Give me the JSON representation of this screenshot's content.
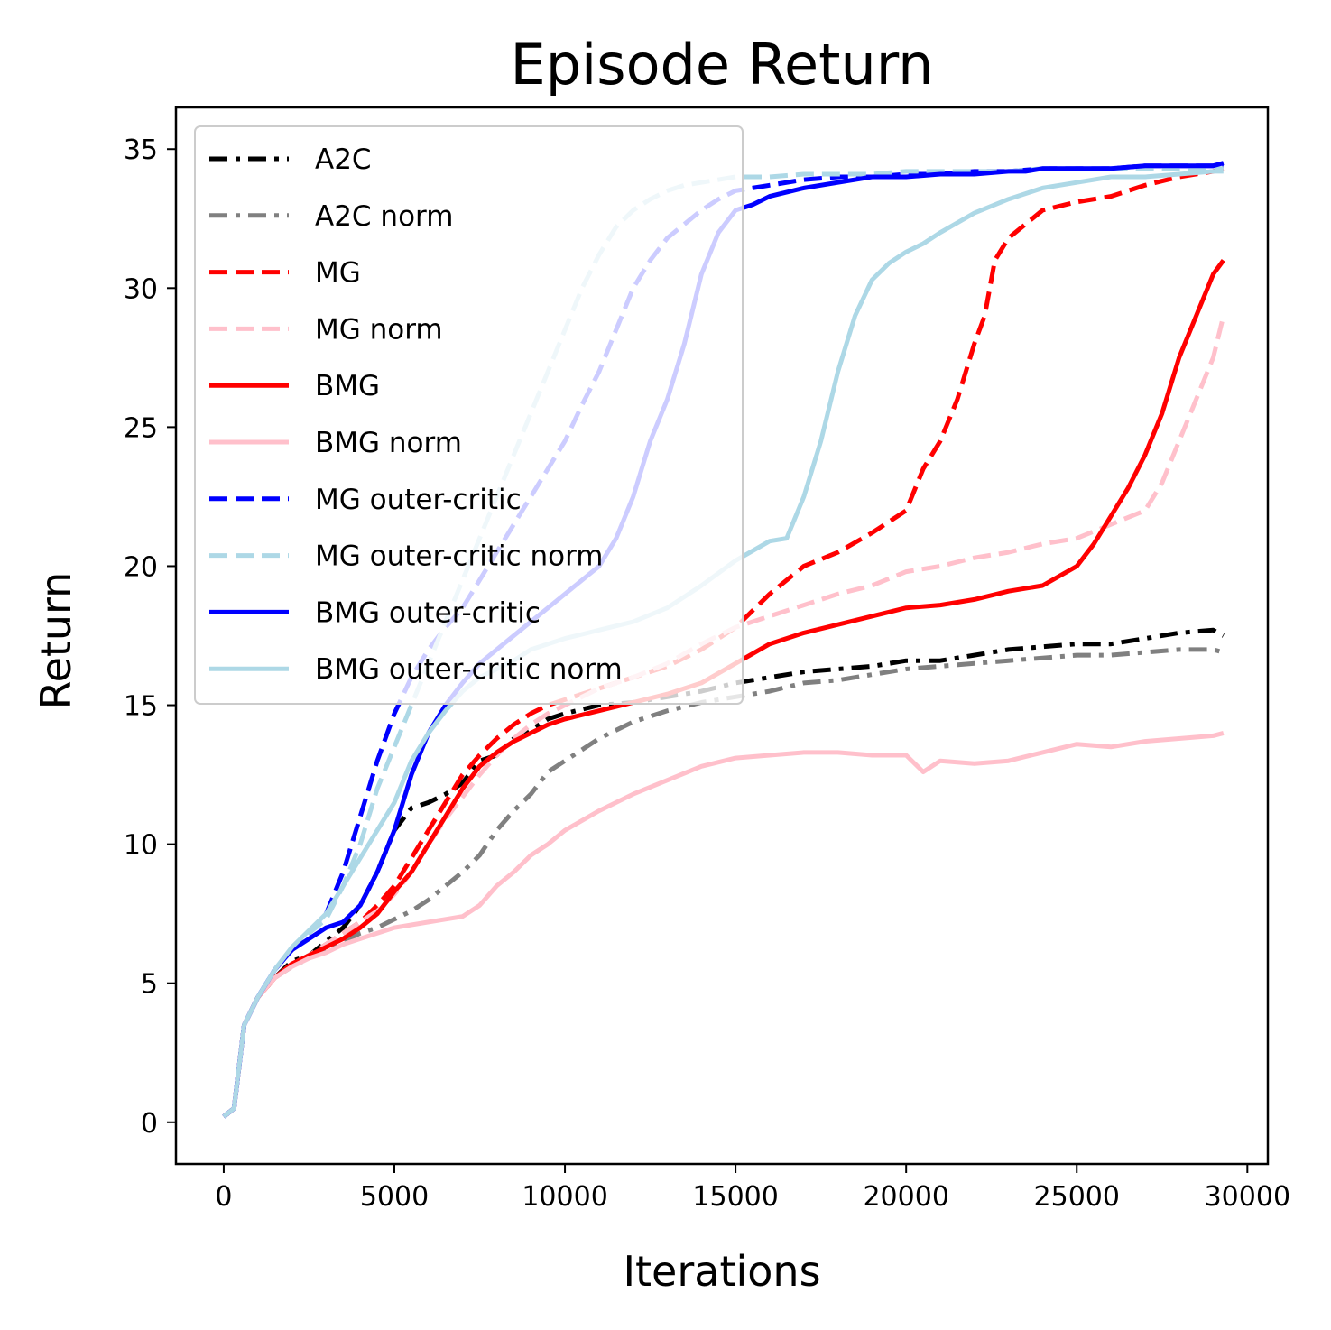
{
  "chart_data": {
    "type": "line",
    "title": "Episode Return",
    "xlabel": "Iterations",
    "ylabel": "Return",
    "xlim": [
      -1400,
      30600
    ],
    "ylim": [
      -1.5,
      36.5
    ],
    "xticks": [
      0,
      5000,
      10000,
      15000,
      20000,
      25000,
      30000
    ],
    "yticks": [
      0,
      5,
      10,
      15,
      20,
      25,
      30,
      35
    ],
    "legend_position": "top-left",
    "grid": false,
    "series": [
      {
        "name": "A2C",
        "color": "#000000",
        "dash": "dashdot",
        "x": [
          0,
          300,
          600,
          1000,
          1500,
          2000,
          2500,
          3000,
          3500,
          4000,
          4500,
          5000,
          5500,
          6000,
          6500,
          7000,
          7500,
          8000,
          8500,
          9000,
          9500,
          10000,
          11000,
          12000,
          13000,
          14000,
          15000,
          16000,
          17000,
          18000,
          19000,
          20000,
          21000,
          22000,
          23000,
          24000,
          25000,
          26000,
          27000,
          28000,
          29000,
          29300
        ],
        "y": [
          0.2,
          0.5,
          3.5,
          4.5,
          5.2,
          5.8,
          6.0,
          6.5,
          7.0,
          7.8,
          9.0,
          10.5,
          11.3,
          11.5,
          11.8,
          12.2,
          13.0,
          13.2,
          13.8,
          14.1,
          14.5,
          14.7,
          15.0,
          15.1,
          15.3,
          15.5,
          15.8,
          16.0,
          16.2,
          16.3,
          16.4,
          16.6,
          16.6,
          16.8,
          17.0,
          17.1,
          17.2,
          17.2,
          17.4,
          17.6,
          17.7,
          17.5
        ]
      },
      {
        "name": "A2C norm",
        "color": "#808080",
        "dash": "dashdot",
        "x": [
          0,
          300,
          600,
          1000,
          1500,
          2000,
          2500,
          3000,
          3500,
          4000,
          4500,
          5000,
          5500,
          6000,
          6500,
          7000,
          7500,
          8000,
          8500,
          9000,
          9500,
          10000,
          11000,
          12000,
          13000,
          14000,
          15000,
          16000,
          17000,
          18000,
          19000,
          20000,
          21000,
          22000,
          23000,
          24000,
          25000,
          26000,
          27000,
          28000,
          29000,
          29300
        ],
        "y": [
          0.2,
          0.5,
          3.5,
          4.5,
          5.2,
          5.6,
          5.9,
          6.2,
          6.5,
          6.8,
          7.0,
          7.3,
          7.6,
          8.0,
          8.5,
          9.0,
          9.6,
          10.5,
          11.2,
          11.8,
          12.6,
          13.0,
          13.8,
          14.4,
          14.8,
          15.1,
          15.3,
          15.5,
          15.8,
          15.9,
          16.1,
          16.3,
          16.4,
          16.5,
          16.6,
          16.7,
          16.8,
          16.8,
          16.9,
          17.0,
          17.0,
          16.9
        ]
      },
      {
        "name": "MG",
        "color": "#ff0000",
        "dash": "dashed",
        "x": [
          0,
          300,
          600,
          1000,
          1500,
          2000,
          2500,
          3000,
          3500,
          4000,
          4500,
          5000,
          5500,
          6000,
          6500,
          7000,
          7500,
          8000,
          8500,
          9000,
          9500,
          10000,
          11000,
          12000,
          13000,
          14000,
          15000,
          16000,
          17000,
          18000,
          19000,
          20000,
          20500,
          21000,
          21500,
          22000,
          22300,
          22600,
          23000,
          23500,
          24000,
          25000,
          26000,
          27000,
          28000,
          29000,
          29300
        ],
        "y": [
          0.2,
          0.5,
          3.5,
          4.5,
          5.2,
          5.7,
          6.0,
          6.4,
          6.8,
          7.2,
          7.8,
          8.5,
          9.5,
          10.5,
          11.5,
          12.5,
          13.2,
          13.8,
          14.3,
          14.7,
          15.0,
          15.2,
          15.6,
          16.0,
          16.4,
          17.0,
          17.8,
          19.0,
          20.0,
          20.5,
          21.2,
          22.0,
          23.5,
          24.5,
          26.0,
          28.0,
          29.0,
          31.0,
          31.8,
          32.3,
          32.8,
          33.1,
          33.3,
          33.7,
          34.0,
          34.2,
          34.3
        ]
      },
      {
        "name": "MG norm",
        "color": "#ffc0cb",
        "dash": "dashed",
        "x": [
          0,
          300,
          600,
          1000,
          1500,
          2000,
          2500,
          3000,
          3500,
          4000,
          4500,
          5000,
          5500,
          6000,
          6500,
          7000,
          7500,
          8000,
          8500,
          9000,
          9500,
          10000,
          11000,
          12000,
          13000,
          14000,
          15000,
          16000,
          17000,
          18000,
          19000,
          20000,
          21000,
          22000,
          23000,
          24000,
          25000,
          26000,
          27000,
          27500,
          28000,
          28500,
          29000,
          29300
        ],
        "y": [
          0.2,
          0.5,
          3.5,
          4.5,
          5.2,
          5.7,
          6.0,
          6.4,
          6.8,
          7.2,
          7.6,
          8.2,
          9.0,
          10.0,
          10.9,
          11.7,
          12.5,
          13.2,
          13.8,
          14.3,
          14.7,
          15.0,
          15.6,
          16.0,
          16.5,
          17.2,
          17.8,
          18.2,
          18.6,
          19.0,
          19.3,
          19.8,
          20.0,
          20.3,
          20.5,
          20.8,
          21.0,
          21.5,
          22.0,
          23.0,
          24.5,
          26.0,
          27.5,
          29.0
        ]
      },
      {
        "name": "BMG",
        "color": "#ff0000",
        "dash": "solid",
        "x": [
          0,
          300,
          600,
          1000,
          1500,
          2000,
          2500,
          3000,
          3500,
          4000,
          4500,
          5000,
          5500,
          6000,
          6500,
          7000,
          7500,
          8000,
          8500,
          9000,
          9500,
          10000,
          11000,
          12000,
          13000,
          14000,
          15000,
          16000,
          17000,
          18000,
          19000,
          20000,
          21000,
          22000,
          23000,
          24000,
          25000,
          25500,
          26000,
          26500,
          27000,
          27500,
          28000,
          28500,
          29000,
          29300
        ],
        "y": [
          0.2,
          0.5,
          3.5,
          4.5,
          5.2,
          5.7,
          6.0,
          6.3,
          6.6,
          7.0,
          7.5,
          8.3,
          9.0,
          10.0,
          11.0,
          12.0,
          12.8,
          13.3,
          13.7,
          14.0,
          14.3,
          14.5,
          14.8,
          15.1,
          15.4,
          15.8,
          16.5,
          17.2,
          17.6,
          17.9,
          18.2,
          18.5,
          18.6,
          18.8,
          19.1,
          19.3,
          20.0,
          20.8,
          21.8,
          22.8,
          24.0,
          25.5,
          27.5,
          29.0,
          30.5,
          31.0
        ]
      },
      {
        "name": "BMG norm",
        "color": "#ffc0cb",
        "dash": "solid",
        "x": [
          0,
          300,
          600,
          1000,
          1500,
          2000,
          2500,
          3000,
          3500,
          4000,
          4500,
          5000,
          5500,
          6000,
          6500,
          7000,
          7500,
          8000,
          8500,
          9000,
          9500,
          10000,
          11000,
          12000,
          13000,
          14000,
          15000,
          16000,
          17000,
          18000,
          19000,
          20000,
          20500,
          21000,
          22000,
          23000,
          24000,
          25000,
          26000,
          27000,
          28000,
          29000,
          29300
        ],
        "y": [
          0.2,
          0.5,
          3.5,
          4.5,
          5.2,
          5.6,
          5.9,
          6.1,
          6.4,
          6.6,
          6.8,
          7.0,
          7.1,
          7.2,
          7.3,
          7.4,
          7.8,
          8.5,
          9.0,
          9.6,
          10.0,
          10.5,
          11.2,
          11.8,
          12.3,
          12.8,
          13.1,
          13.2,
          13.3,
          13.3,
          13.2,
          13.2,
          12.6,
          13.0,
          12.9,
          13.0,
          13.3,
          13.6,
          13.5,
          13.7,
          13.8,
          13.9,
          14.0
        ]
      },
      {
        "name": "MG outer-critic",
        "color": "#0000ff",
        "dash": "dashed",
        "x": [
          0,
          300,
          600,
          1000,
          1500,
          2000,
          2500,
          3000,
          3500,
          4000,
          4500,
          5000,
          5500,
          6000,
          6500,
          7000,
          7500,
          8000,
          8500,
          9000,
          9500,
          10000,
          10500,
          11000,
          11500,
          12000,
          12500,
          13000,
          13500,
          14000,
          14500,
          15000,
          16000,
          17000,
          18000,
          19000,
          20000,
          21000,
          22000,
          23000,
          24000,
          25000,
          26000,
          27000,
          28000,
          29000,
          29300
        ],
        "y": [
          0.2,
          0.5,
          3.5,
          4.5,
          5.5,
          6.2,
          6.8,
          7.5,
          9.0,
          11.0,
          13.0,
          14.7,
          16.0,
          17.0,
          17.8,
          18.5,
          19.5,
          20.5,
          21.5,
          22.5,
          23.5,
          24.5,
          25.8,
          27.0,
          28.5,
          30.0,
          31.0,
          31.8,
          32.3,
          32.8,
          33.2,
          33.5,
          33.7,
          33.9,
          34.0,
          34.0,
          34.1,
          34.1,
          34.2,
          34.2,
          34.3,
          34.3,
          34.3,
          34.4,
          34.4,
          34.4,
          34.4
        ]
      },
      {
        "name": "MG outer-critic norm",
        "color": "#add8e6",
        "dash": "dashed",
        "x": [
          0,
          300,
          600,
          1000,
          1500,
          2000,
          2500,
          3000,
          3500,
          4000,
          4500,
          5000,
          5500,
          6000,
          6500,
          7000,
          7500,
          8000,
          8500,
          9000,
          9500,
          10000,
          10500,
          11000,
          11500,
          12000,
          12500,
          13000,
          13500,
          14000,
          14500,
          15000,
          16000,
          17000,
          18000,
          19000,
          20000,
          21000,
          22000,
          23000,
          24000,
          25000,
          26000,
          27000,
          28000,
          29000,
          29300
        ],
        "y": [
          0.2,
          0.5,
          3.5,
          4.5,
          5.5,
          6.2,
          6.8,
          7.3,
          8.5,
          10.0,
          12.0,
          13.5,
          15.0,
          16.5,
          18.0,
          19.5,
          21.0,
          22.5,
          24.0,
          25.5,
          27.0,
          28.5,
          30.0,
          31.2,
          32.2,
          32.8,
          33.2,
          33.5,
          33.7,
          33.8,
          33.9,
          34.0,
          34.0,
          34.1,
          34.1,
          34.1,
          34.2,
          34.2,
          34.2,
          34.2,
          34.3,
          34.3,
          34.3,
          34.3,
          34.3,
          34.3,
          34.3
        ]
      },
      {
        "name": "BMG outer-critic",
        "color": "#0000ff",
        "dash": "solid",
        "x": [
          0,
          300,
          600,
          1000,
          1500,
          2000,
          2500,
          3000,
          3500,
          4000,
          4500,
          5000,
          5500,
          6000,
          6500,
          7000,
          7500,
          8000,
          8500,
          9000,
          9500,
          10000,
          10500,
          11000,
          11500,
          12000,
          12500,
          13000,
          13500,
          14000,
          14500,
          15000,
          15500,
          16000,
          17000,
          18000,
          19000,
          20000,
          21000,
          22000,
          23000,
          23500,
          24000,
          25000,
          26000,
          27000,
          28000,
          29000,
          29300
        ],
        "y": [
          0.2,
          0.5,
          3.5,
          4.5,
          5.5,
          6.2,
          6.6,
          7.0,
          7.2,
          7.8,
          9.0,
          10.5,
          12.5,
          14.0,
          15.0,
          15.8,
          16.5,
          17.0,
          17.5,
          18.0,
          18.5,
          19.0,
          19.5,
          20.0,
          21.0,
          22.5,
          24.5,
          26.0,
          28.0,
          30.5,
          32.0,
          32.8,
          33.0,
          33.3,
          33.6,
          33.8,
          34.0,
          34.0,
          34.1,
          34.1,
          34.2,
          34.2,
          34.3,
          34.3,
          34.3,
          34.4,
          34.4,
          34.4,
          34.5
        ]
      },
      {
        "name": "BMG outer-critic norm",
        "color": "#add8e6",
        "dash": "solid",
        "x": [
          0,
          300,
          600,
          1000,
          1500,
          2000,
          2500,
          3000,
          3500,
          4000,
          4500,
          5000,
          5500,
          6000,
          6500,
          7000,
          7500,
          8000,
          8500,
          9000,
          9500,
          10000,
          11000,
          12000,
          13000,
          14000,
          15000,
          16000,
          16500,
          17000,
          17500,
          18000,
          18500,
          19000,
          19500,
          20000,
          20500,
          21000,
          22000,
          23000,
          24000,
          25000,
          26000,
          27000,
          28000,
          29000,
          29300
        ],
        "y": [
          0.2,
          0.5,
          3.5,
          4.5,
          5.5,
          6.3,
          6.9,
          7.5,
          8.5,
          9.5,
          10.5,
          11.5,
          13.0,
          14.0,
          14.8,
          15.5,
          16.0,
          16.3,
          16.6,
          17.0,
          17.2,
          17.4,
          17.7,
          18.0,
          18.5,
          19.3,
          20.2,
          20.9,
          21.0,
          22.5,
          24.5,
          27.0,
          29.0,
          30.3,
          30.9,
          31.3,
          31.6,
          32.0,
          32.7,
          33.2,
          33.6,
          33.8,
          34.0,
          34.0,
          34.1,
          34.2,
          34.2
        ]
      }
    ]
  }
}
